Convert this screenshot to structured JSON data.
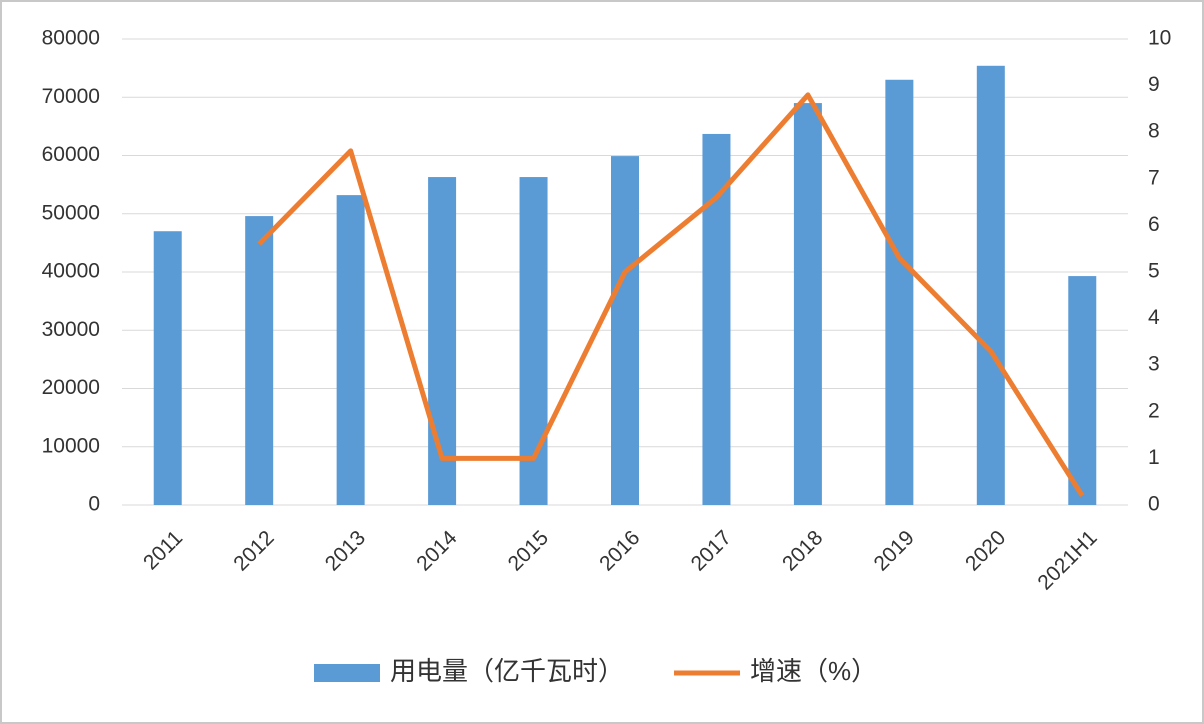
{
  "chart_data": {
    "type": "bar-line",
    "categories": [
      "2011",
      "2012",
      "2013",
      "2014",
      "2015",
      "2016",
      "2017",
      "2018",
      "2019",
      "2020",
      "2021H1"
    ],
    "series": [
      {
        "name": "用电量（亿千瓦时）",
        "color": "#5b9bd5",
        "type": "bar",
        "values": [
          47000,
          49600,
          53200,
          56300,
          56300,
          59900,
          63700,
          69000,
          73000,
          75400,
          39300
        ]
      },
      {
        "name": "增速（%）",
        "color": "#ed7d31",
        "type": "line",
        "axis": "y2",
        "values": [
          null,
          5.6,
          7.6,
          1.0,
          1.0,
          5.0,
          6.6,
          8.8,
          5.3,
          3.3,
          0.2
        ]
      }
    ],
    "ylim": [
      0,
      80000
    ],
    "yticks": [
      0,
      10000,
      20000,
      30000,
      40000,
      50000,
      60000,
      70000,
      80000
    ],
    "y2lim": [
      0,
      10
    ],
    "y2ticks": [
      0,
      1,
      2,
      3,
      4,
      5,
      6,
      7,
      8,
      9,
      10
    ],
    "grid": true,
    "legend": "bottom"
  }
}
